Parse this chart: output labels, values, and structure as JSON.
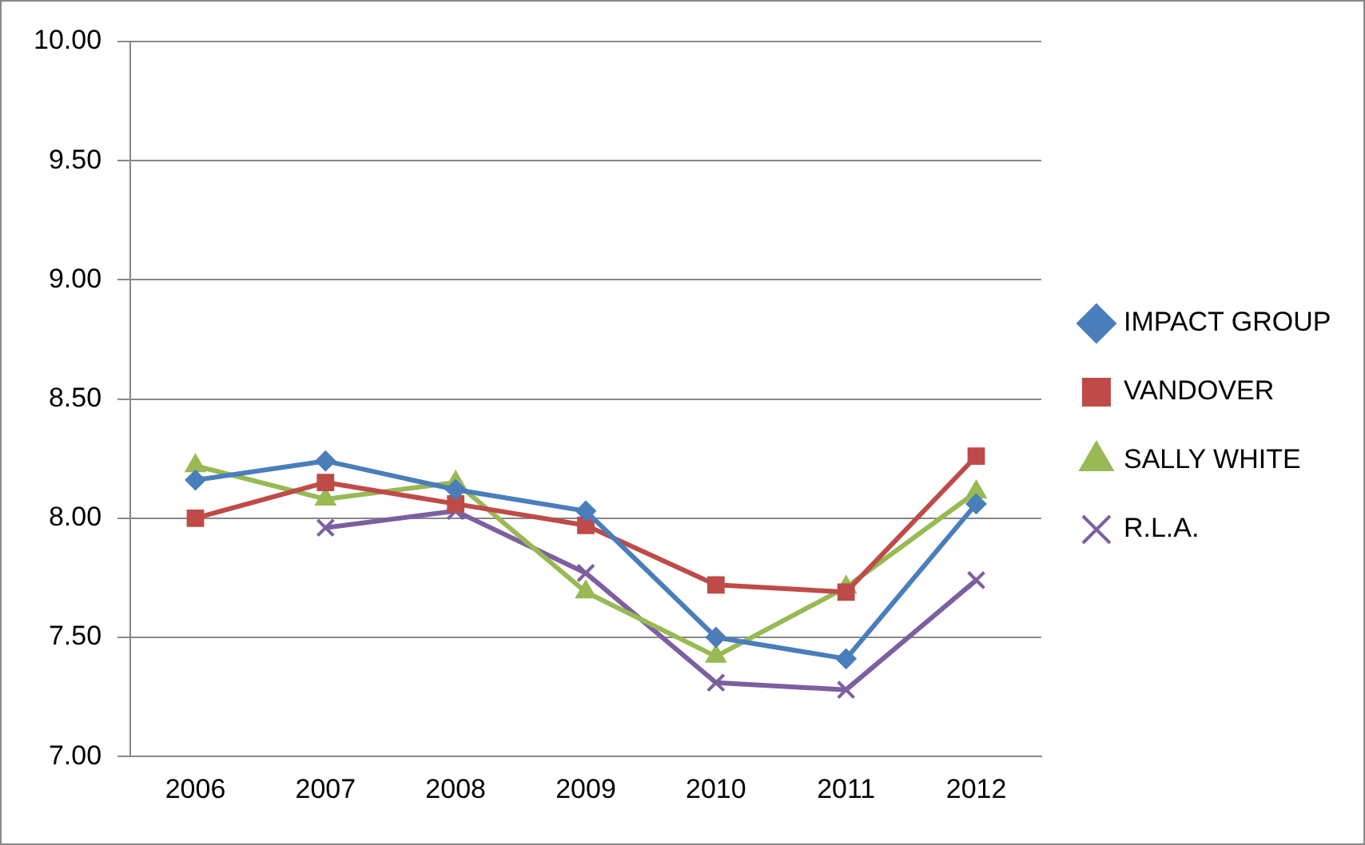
{
  "chart_data": {
    "type": "line",
    "categories": [
      "2006",
      "2007",
      "2008",
      "2009",
      "2010",
      "2011",
      "2012"
    ],
    "series": [
      {
        "name": "IMPACT GROUP",
        "color": "#4a7ebb",
        "marker": "diamond",
        "values": [
          8.16,
          8.24,
          8.12,
          8.03,
          7.5,
          7.41,
          8.06
        ]
      },
      {
        "name": "VANDOVER",
        "color": "#be4b48",
        "marker": "square",
        "values": [
          8.0,
          8.15,
          8.06,
          7.97,
          7.72,
          7.69,
          8.26
        ]
      },
      {
        "name": "SALLY WHITE",
        "color": "#98b954",
        "marker": "triangle",
        "values": [
          8.22,
          8.08,
          8.15,
          7.69,
          7.42,
          7.71,
          8.11
        ]
      },
      {
        "name": "R.L.A.",
        "color": "#7d5fa0",
        "marker": "cross",
        "values": [
          null,
          7.96,
          8.03,
          7.77,
          7.31,
          7.28,
          7.74
        ]
      }
    ],
    "ylim": [
      7.0,
      10.0
    ],
    "yticks": [
      {
        "value": 7,
        "label": "7.00"
      },
      {
        "value": 7.5,
        "label": "7.50"
      },
      {
        "value": 8,
        "label": "8.00"
      },
      {
        "value": 8.5,
        "label": "8.50"
      },
      {
        "value": 9,
        "label": "9.00"
      },
      {
        "value": 9.5,
        "label": "9.50"
      },
      {
        "value": 10,
        "label": "10.00"
      }
    ],
    "grid": "y",
    "legend": "right"
  }
}
